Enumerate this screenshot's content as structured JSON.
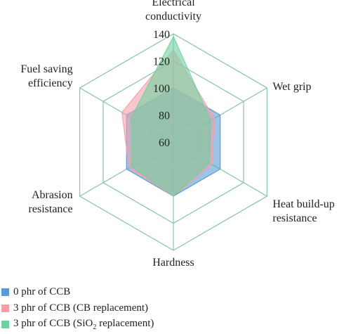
{
  "chart_data": {
    "type": "radar",
    "axes": [
      {
        "label": [
          "Electrical",
          "conductivity"
        ]
      },
      {
        "label": [
          "Wet grip"
        ]
      },
      {
        "label": [
          "Heat build-up",
          "resistance"
        ]
      },
      {
        "label": [
          "Hardness"
        ]
      },
      {
        "label": [
          "Abrasion",
          "resistance"
        ]
      },
      {
        "label": [
          "Fuel saving",
          "efficiency"
        ]
      }
    ],
    "rlim": [
      60,
      140
    ],
    "ticks": [
      60,
      80,
      100,
      120,
      140
    ],
    "grid": true,
    "series": [
      {
        "name": "0 phr of CCB",
        "color": "#5b9bd5",
        "values": [
          100,
          100,
          100,
          100,
          100,
          100
        ]
      },
      {
        "name": "3 phr of CCB (CB replacement)",
        "color": "#f4a0a8",
        "values": [
          128,
          95,
          93,
          100,
          98,
          104
        ]
      },
      {
        "name": "3 phr of CCB (SiO2 replacement)",
        "color": "#6fd0a2",
        "values": [
          138,
          92,
          91,
          100,
          96,
          96
        ]
      }
    ],
    "legend_placement": "bottom-left"
  },
  "legend": {
    "items": [
      {
        "text": "0 phr of CCB",
        "color": "#5b9bd5"
      },
      {
        "text": "3 phr of CCB (CB replacement)",
        "color": "#f4a0a8"
      },
      {
        "pre": "3 phr of CCB (SiO",
        "sub": "2",
        "post": " replacement)",
        "color": "#6fd0a2"
      }
    ]
  }
}
